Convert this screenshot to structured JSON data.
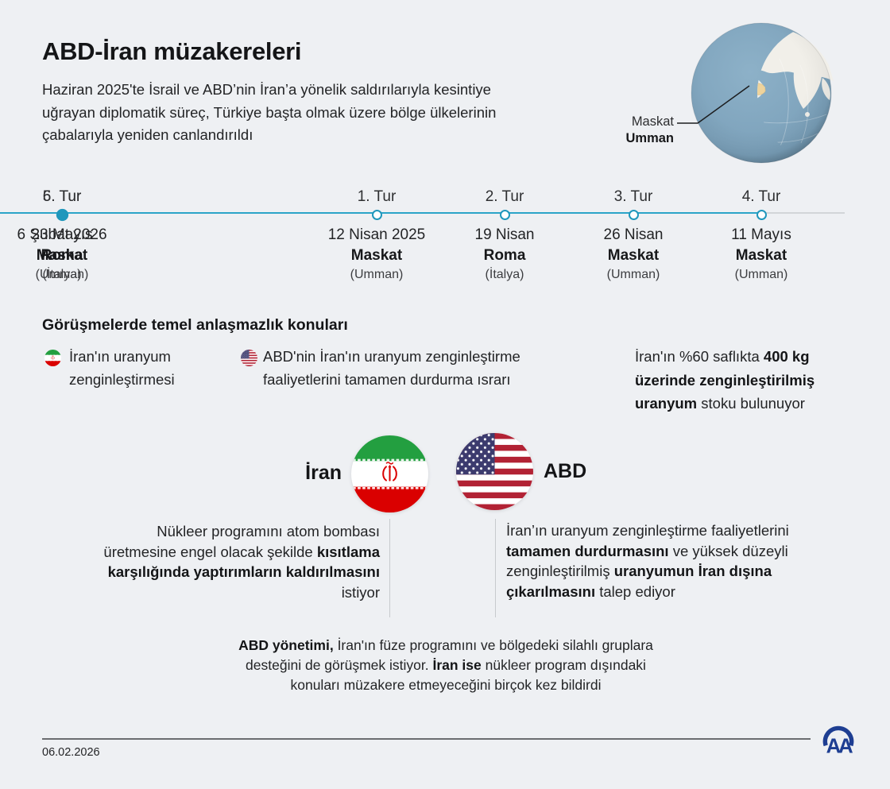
{
  "header": {
    "title": "ABD-İran müzakereleri",
    "subtitle": "Haziran 2025'te İsrail ve ABD’nin İran’a yönelik saldırılarıyla kesintiye uğrayan diplomatik süreç, Türkiye başta olmak üzere bölge ülkelerinin çabalarıyla yeniden canlandırıldı"
  },
  "globe": {
    "city": "Maskat",
    "country": "Umman",
    "highlight_color": "#eed39c",
    "ocean_color": "#7ea3bc",
    "land_color": "#f1efe9"
  },
  "timeline": {
    "rounds": [
      {
        "label": "1. Tur",
        "date": "12 Nisan 2025",
        "city": "Maskat",
        "country": "(Umman)",
        "filled": false
      },
      {
        "label": "2. Tur",
        "date": "19 Nisan",
        "city": "Roma",
        "country": "(İtalya)",
        "filled": false
      },
      {
        "label": "3. Tur",
        "date": "26 Nisan",
        "city": "Maskat",
        "country": "(Umman)",
        "filled": false
      },
      {
        "label": "4. Tur",
        "date": "11 Mayıs",
        "city": "Maskat",
        "country": "(Umman)",
        "filled": false
      },
      {
        "label": "5. Tur",
        "date": "23 Mayıs",
        "city": "Roma",
        "country": "(İtalya)",
        "filled": false
      },
      {
        "label": "6. Tur",
        "date": "6 Şubat 2026",
        "city": "Maskat",
        "country": "(Umman)",
        "filled": true
      }
    ],
    "line_color": "#2ba4c8",
    "future_line_color": "#d2d5d8"
  },
  "disputes": {
    "heading": "Görüşmelerde temel anlaşmazlık konuları",
    "items": [
      {
        "icon": "iran-flag-icon",
        "text": "İran'ın uranyum zenginleştirmesi"
      },
      {
        "icon": "us-flag-icon",
        "text": "ABD'nin İran'ın uranyum zenginleştirme faaliyetlerini tamamen durdurma ısrarı"
      }
    ],
    "stock_note": [
      {
        "text": "İran'ın %60 saflıkta ",
        "bold": false
      },
      {
        "text": "400 kg üzerinde zenginleştirilmiş uranyum",
        "bold": true
      },
      {
        "text": " stoku bulunuyor",
        "bold": false
      }
    ]
  },
  "positions": {
    "iran": {
      "label": "İran",
      "flag": "iran-flag-icon",
      "text": [
        {
          "text": "Nükleer programını atom bombası üretmesine engel olacak şekilde ",
          "bold": false
        },
        {
          "text": "kısıtlama karşılığında yaptırımların kaldırılmasını",
          "bold": true
        },
        {
          "text": " istiyor",
          "bold": false
        }
      ]
    },
    "usa": {
      "label": "ABD",
      "flag": "us-flag-icon",
      "text": [
        {
          "text": "İran’ın uranyum zenginleştirme faaliyetlerini ",
          "bold": false
        },
        {
          "text": "tamamen durdurmasını",
          "bold": true
        },
        {
          "text": " ve yüksek düzeyli zenginleştirilmiş ",
          "bold": false
        },
        {
          "text": "uranyumun İran dışına çıkarılmasını",
          "bold": true
        },
        {
          "text": " talep ediyor",
          "bold": false
        }
      ]
    },
    "joint_note": [
      {
        "text": "ABD yönetimi,",
        "bold": true
      },
      {
        "text": " İran'ın füze programını ve bölgedeki silahlı gruplara desteğini de görüşmek istiyor. ",
        "bold": false
      },
      {
        "text": "İran ise",
        "bold": true
      },
      {
        "text": " nükleer program dışındaki konuları müzakere etmeyeceğini birçok kez bildirdi",
        "bold": false
      }
    ]
  },
  "footer": {
    "date": "06.02.2026",
    "agency": "AA",
    "logo_color": "#1e3e92"
  },
  "colors": {
    "background": "#eef0f3",
    "text": "#1b1c1e",
    "accent_blue": "#2ba4c8",
    "iran_green": "#239f40",
    "iran_red": "#da0000",
    "us_navy": "#3c3b6e",
    "us_red": "#b22234"
  }
}
